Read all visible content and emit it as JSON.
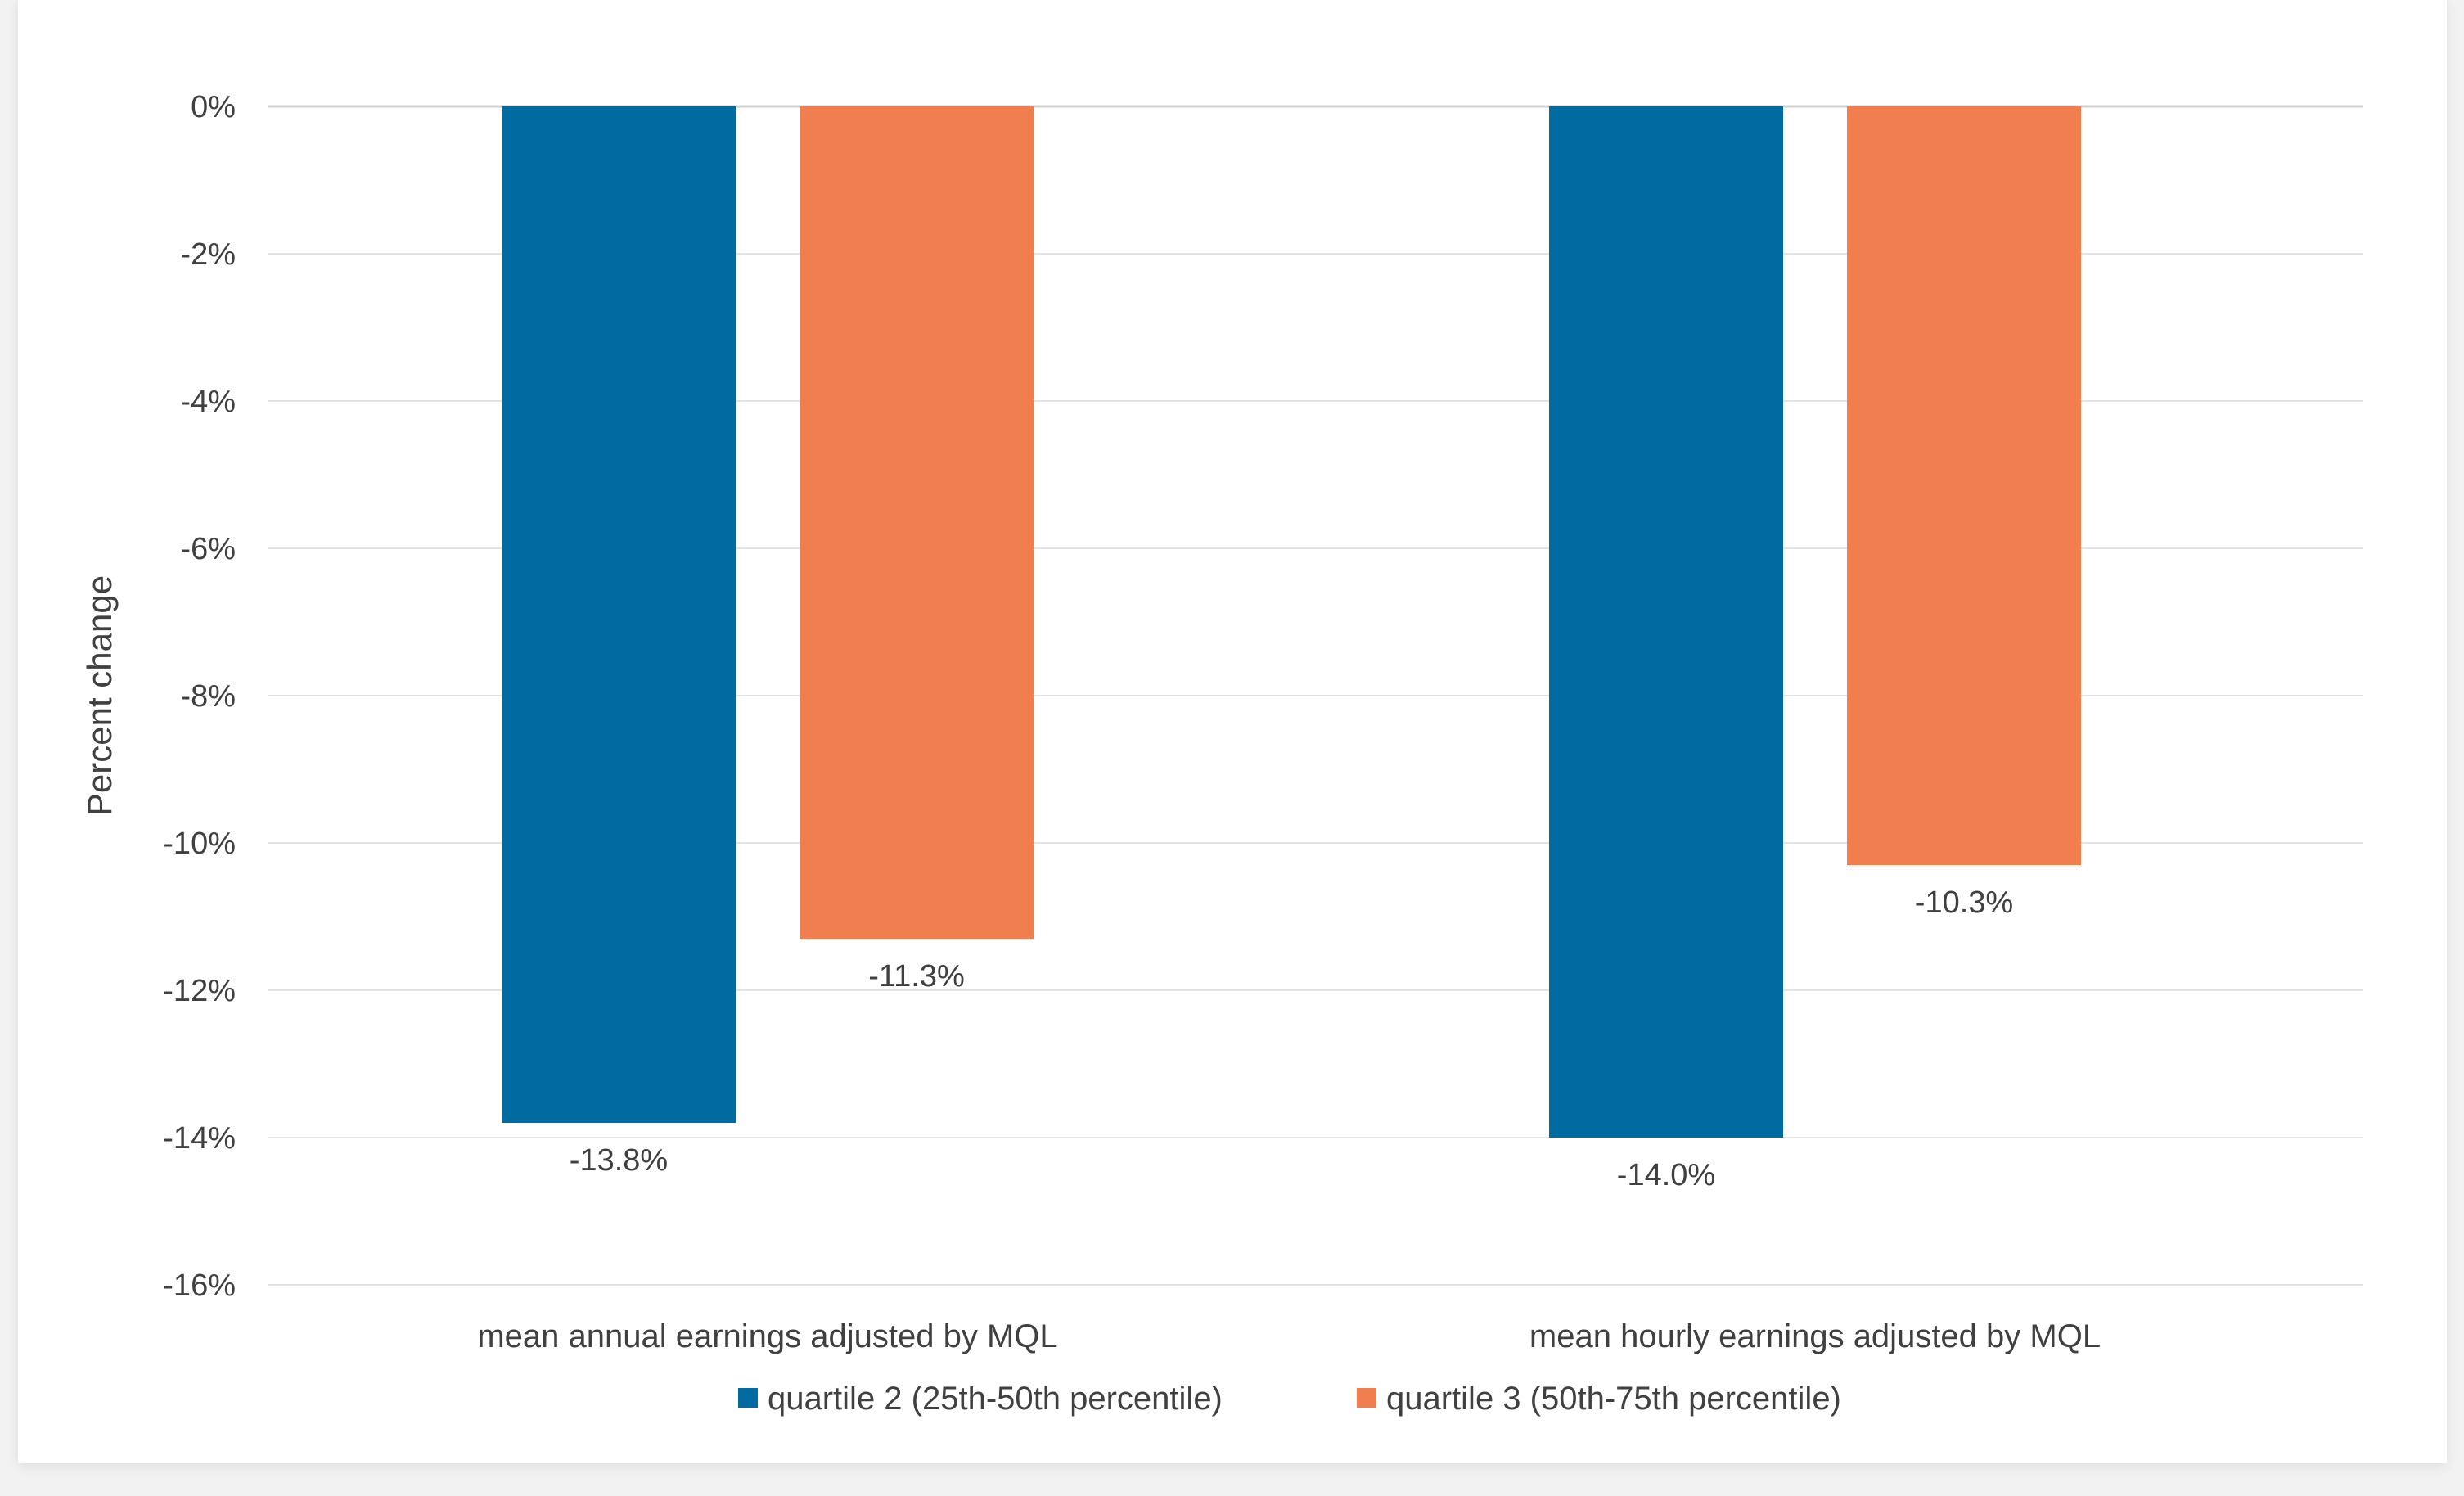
{
  "chart_data": {
    "type": "bar",
    "categories": [
      "mean annual earnings adjusted by MQL",
      "mean hourly earnings adjusted by MQL"
    ],
    "series": [
      {
        "name": "quartile 2 (25th-50th percentile)",
        "color": "#006ba1",
        "values": [
          -13.8,
          -14.0
        ],
        "labels": [
          "-13.8%",
          "-14.0%"
        ]
      },
      {
        "name": "quartile 3 (50th-75th percentile)",
        "color": "#f07e4f",
        "values": [
          -11.3,
          -10.3
        ],
        "labels": [
          "-11.3%",
          "-10.3%"
        ]
      }
    ],
    "ylabel": "Percent change",
    "ylim": [
      -16,
      0
    ],
    "yticks": [
      0,
      -2,
      -4,
      -6,
      -8,
      -10,
      -12,
      -14,
      -16
    ],
    "ytick_labels": [
      "0%",
      "-2%",
      "-4%",
      "-6%",
      "-8%",
      "-10%",
      "-12%",
      "-14%",
      "-16%"
    ],
    "grid": true,
    "legend_position": "bottom"
  }
}
